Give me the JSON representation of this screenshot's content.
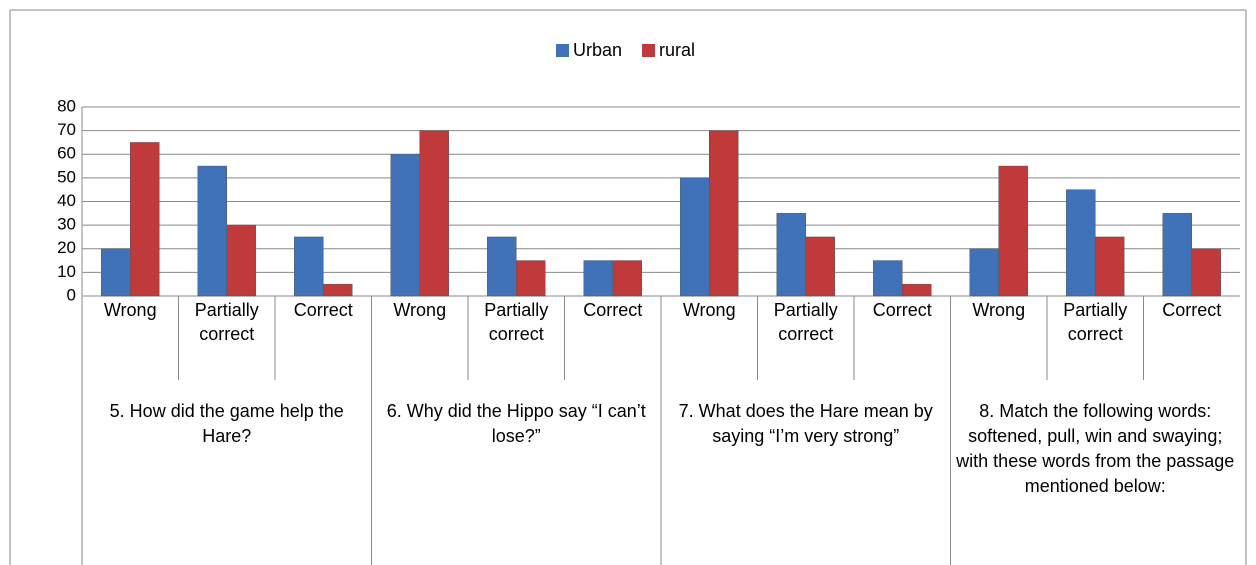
{
  "chart_data": {
    "type": "bar",
    "categories": [
      "Wrong",
      "Partially correct",
      "Correct",
      "Wrong",
      "Partially correct",
      "Correct",
      "Wrong",
      "Partially correct",
      "Correct",
      "Wrong",
      "Partially correct",
      "Correct"
    ],
    "groups": [
      "5. How did the game help the Hare?",
      "6. Why did the Hippo say “I can’t lose?”",
      "7. What does the Hare mean by saying “I’m very strong”",
      "8. Match the following words: softened, pull, win and swaying; with these words from the passage mentioned below:"
    ],
    "series": [
      {
        "name": "Urban",
        "color": "#3f72b8",
        "values": [
          20,
          55,
          25,
          60,
          25,
          15,
          50,
          35,
          15,
          20,
          45,
          35
        ]
      },
      {
        "name": "rural",
        "color": "#c0393b",
        "values": [
          65,
          30,
          5,
          70,
          15,
          15,
          70,
          25,
          5,
          55,
          25,
          20
        ]
      }
    ],
    "ylim": [
      0,
      80
    ],
    "yticks": [
      0,
      10,
      20,
      30,
      40,
      50,
      60,
      70,
      80
    ],
    "grid": true,
    "legend": "top"
  }
}
